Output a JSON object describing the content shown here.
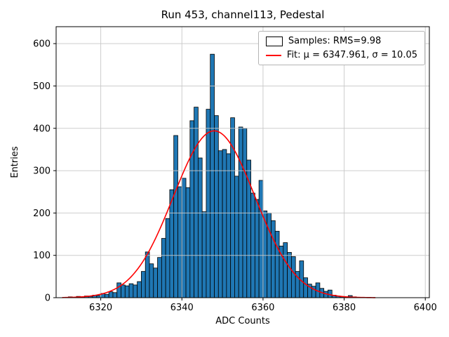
{
  "chart_data": {
    "type": "bar",
    "title": "Run 453, channel113, Pedestal",
    "xlabel": "ADC Counts",
    "ylabel": "Entries",
    "xlim": [
      6309,
      6401
    ],
    "ylim": [
      0,
      640
    ],
    "xticks": [
      6320,
      6340,
      6360,
      6380,
      6400
    ],
    "yticks": [
      0,
      100,
      200,
      300,
      400,
      500,
      600
    ],
    "grid": true,
    "legend_position": "upper right",
    "bins": {
      "start": 6312,
      "width": 1,
      "counts": [
        2,
        1,
        3,
        2,
        4,
        3,
        6,
        5,
        10,
        8,
        14,
        12,
        35,
        30,
        28,
        33,
        30,
        38,
        62,
        108,
        80,
        70,
        95,
        140,
        187,
        255,
        383,
        262,
        282,
        260,
        418,
        450,
        330,
        203,
        445,
        575,
        430,
        347,
        350,
        340,
        425,
        287,
        403,
        400,
        325,
        247,
        232,
        277,
        205,
        200,
        182,
        157,
        122,
        130,
        107,
        97,
        62,
        87,
        47,
        32,
        27,
        35,
        22,
        15,
        18,
        6,
        4,
        2,
        1,
        5,
        2,
        1
      ]
    },
    "fit": {
      "type": "gaussian",
      "mu": 6347.961,
      "sigma": 10.05,
      "amplitude": 394,
      "x_range": [
        6310.5,
        6388
      ]
    },
    "stats": {
      "rms": 9.98
    },
    "legend": {
      "samples_label": "Samples: RMS=9.98",
      "fit_label": "Fit: μ = 6347.961, σ = 10.05"
    },
    "colors": {
      "bar_fill": "#1f77b4",
      "bar_edge": "#000000",
      "fit_line": "#ff0000",
      "grid": "#c8c8c8",
      "axis": "#000000"
    }
  }
}
